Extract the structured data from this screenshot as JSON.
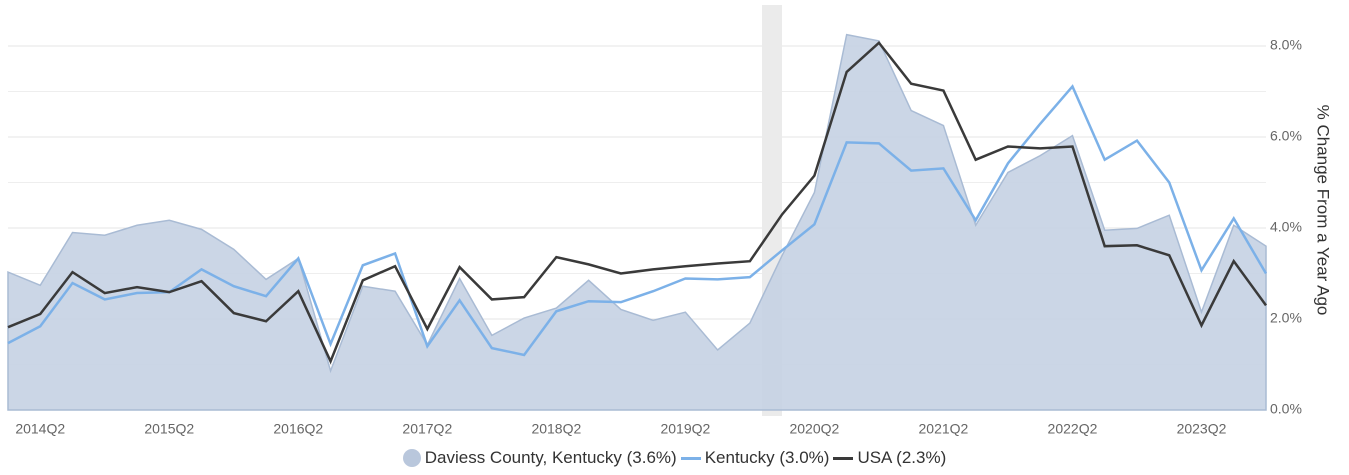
{
  "chart_data": {
    "type": "line",
    "y_label": "% Change From a Year Ago",
    "categories": [
      null,
      "2014Q2",
      null,
      null,
      null,
      "2015Q2",
      null,
      null,
      null,
      "2016Q2",
      null,
      null,
      null,
      "2017Q2",
      null,
      null,
      null,
      "2018Q2",
      null,
      null,
      null,
      "2019Q2",
      null,
      null,
      null,
      "2020Q2",
      null,
      null,
      null,
      "2021Q2",
      null,
      null,
      null,
      "2022Q2",
      null,
      null,
      null,
      "2023Q2",
      null,
      null
    ],
    "series": [
      {
        "name": "Daviess County, Kentucky (3.6%)",
        "kind": "area",
        "color": "#c5d2e3",
        "values": [
          3.03,
          2.74,
          3.9,
          3.84,
          4.06,
          4.17,
          3.97,
          3.53,
          2.87,
          3.33,
          0.86,
          2.72,
          2.61,
          1.43,
          2.89,
          1.64,
          2.02,
          2.24,
          2.85,
          2.21,
          1.97,
          2.15,
          1.32,
          1.91,
          3.4,
          4.78,
          8.25,
          8.11,
          6.58,
          6.25,
          4.06,
          5.22,
          5.59,
          6.03,
          3.95,
          3.99,
          4.28,
          2.15,
          4.06,
          3.6
        ]
      },
      {
        "name": "Kentucky (3.0%)",
        "kind": "line",
        "color": "#7cb1e8",
        "values": [
          1.47,
          1.84,
          2.79,
          2.43,
          2.57,
          2.59,
          3.09,
          2.72,
          2.5,
          3.33,
          1.45,
          3.18,
          3.44,
          1.4,
          2.41,
          1.36,
          1.21,
          2.17,
          2.39,
          2.37,
          2.61,
          2.89,
          2.87,
          2.92,
          3.51,
          4.08,
          5.88,
          5.86,
          5.26,
          5.31,
          4.17,
          5.42,
          6.29,
          7.11,
          5.5,
          5.92,
          5.0,
          3.07,
          4.21,
          3.0
        ]
      },
      {
        "name": "USA (2.3%)",
        "kind": "line",
        "color": "#3a3a3a",
        "values": [
          1.82,
          2.11,
          3.03,
          2.57,
          2.7,
          2.59,
          2.83,
          2.13,
          1.95,
          2.61,
          1.07,
          2.85,
          3.16,
          1.78,
          3.14,
          2.43,
          2.48,
          3.36,
          3.2,
          3.0,
          3.09,
          3.16,
          3.22,
          3.27,
          4.3,
          5.15,
          7.43,
          8.07,
          7.17,
          7.02,
          5.5,
          5.79,
          5.75,
          5.79,
          3.6,
          3.62,
          3.4,
          1.86,
          3.27,
          2.3
        ]
      }
    ],
    "ylim": [
      0,
      8.9
    ],
    "yticks": [
      {
        "value": 0,
        "label": "0.0%"
      },
      {
        "value": 2,
        "label": "2.0%"
      },
      {
        "value": 4,
        "label": "4.0%"
      },
      {
        "value": 6,
        "label": "6.0%"
      },
      {
        "value": 8,
        "label": "8.0%"
      }
    ],
    "minor_grid_yticks": [
      1,
      3,
      5,
      7
    ],
    "grid": true,
    "legend": "bottom"
  }
}
